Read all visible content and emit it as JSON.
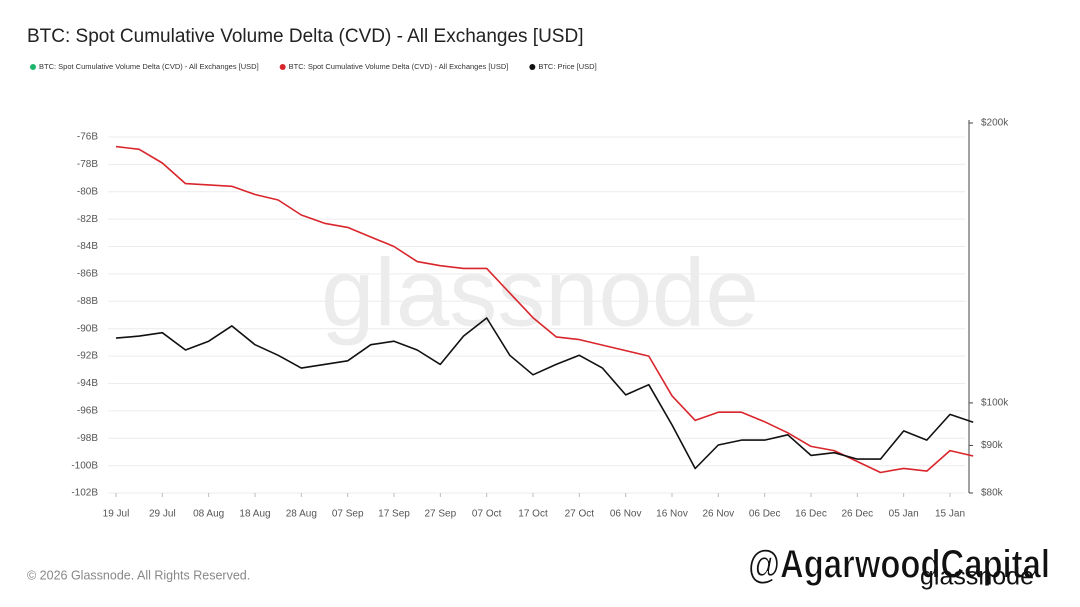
{
  "chart_data": {
    "type": "line",
    "title": "BTC: Spot Cumulative Volume Delta (CVD) - All Exchanges [USD]",
    "watermark": "glassnode",
    "footer": "© 2026 Glassnode. All Rights Reserved.",
    "credit": "@AgarwoodCapital",
    "brand": "glassnode",
    "categories": [
      "19 Jul",
      null,
      "29 Jul",
      null,
      "08 Aug",
      null,
      "18 Aug",
      null,
      "28 Aug",
      null,
      "07 Sep",
      null,
      "17 Sep",
      null,
      "27 Sep",
      null,
      "07 Oct",
      null,
      "17 Oct",
      null,
      "27 Oct",
      null,
      "06 Nov",
      null,
      "16 Nov",
      null,
      "26 Nov",
      null,
      "06 Dec",
      null,
      "16 Dec",
      null,
      "26 Dec",
      null,
      "05 Jan",
      null,
      "15 Jan",
      null
    ],
    "series": [
      {
        "name": "BTC: Spot Cumulative Volume Delta (CVD) - All Exchanges [USD]",
        "color": "#1db56e",
        "values": [
          null,
          null,
          null,
          null,
          null,
          null,
          null,
          null,
          null,
          null,
          null,
          null,
          null,
          null,
          null,
          null,
          null,
          null,
          null,
          null,
          null,
          null,
          null,
          null,
          null,
          null,
          null,
          null,
          null,
          null,
          null,
          null,
          null,
          null,
          null,
          null,
          null,
          null
        ]
      },
      {
        "name": "BTC: Spot Cumulative Volume Delta (CVD) - All Exchanges [USD]",
        "color": "#d9262c",
        "values": [
          -76.7,
          -76.9,
          -77.9,
          -79.4,
          -79.5,
          -79.6,
          -80.2,
          -80.6,
          -81.7,
          -82.3,
          -82.6,
          -83.3,
          -84.0,
          -85.1,
          -85.4,
          -85.6,
          -85.6,
          -87.4,
          -89.2,
          -90.6,
          -90.8,
          -91.2,
          -91.6,
          -92.0,
          -94.9,
          -96.7,
          -96.1,
          -96.1,
          -96.8,
          -97.6,
          -98.6,
          -98.9,
          -99.7,
          -100.5,
          -100.2,
          -100.4,
          -98.9,
          -99.3
        ]
      },
      {
        "name": "BTC: Price [USD]",
        "color": "#111111",
        "axis": "y2",
        "values": [
          117.4,
          118,
          119,
          114,
          116.5,
          121,
          115.5,
          112.5,
          109,
          110,
          111,
          115.5,
          116.5,
          114,
          110,
          118,
          123.4,
          112.5,
          107.2,
          110,
          112.5,
          109,
          102,
          104.6,
          94.7,
          85,
          90.1,
          91.2,
          91.2,
          92.4,
          87.8,
          88.4,
          87,
          87,
          93.3,
          91.2,
          97.2,
          95.3
        ]
      }
    ],
    "ylim": [
      -102,
      -76
    ],
    "yticks": [
      {
        "value": -76,
        "label": "-76B"
      },
      {
        "value": -78,
        "label": "-78B"
      },
      {
        "value": -80,
        "label": "-80B"
      },
      {
        "value": -82,
        "label": "-82B"
      },
      {
        "value": -84,
        "label": "-84B"
      },
      {
        "value": -86,
        "label": "-86B"
      },
      {
        "value": -88,
        "label": "-88B"
      },
      {
        "value": -90,
        "label": "-90B"
      },
      {
        "value": -92,
        "label": "-92B"
      },
      {
        "value": -94,
        "label": "-94B"
      },
      {
        "value": -96,
        "label": "-96B"
      },
      {
        "value": -98,
        "label": "-98B"
      },
      {
        "value": -100,
        "label": "-100B"
      },
      {
        "value": -102,
        "label": "-102B"
      }
    ],
    "y2lim": [
      80,
      200
    ],
    "y2ticks": [
      {
        "value": 80,
        "label": "$80k"
      },
      {
        "value": 90,
        "label": "$90k"
      },
      {
        "value": 100,
        "label": "$100k"
      },
      {
        "value": 200,
        "label": "$200k"
      }
    ],
    "y2log": true,
    "grid": true,
    "legend": "top-left"
  }
}
